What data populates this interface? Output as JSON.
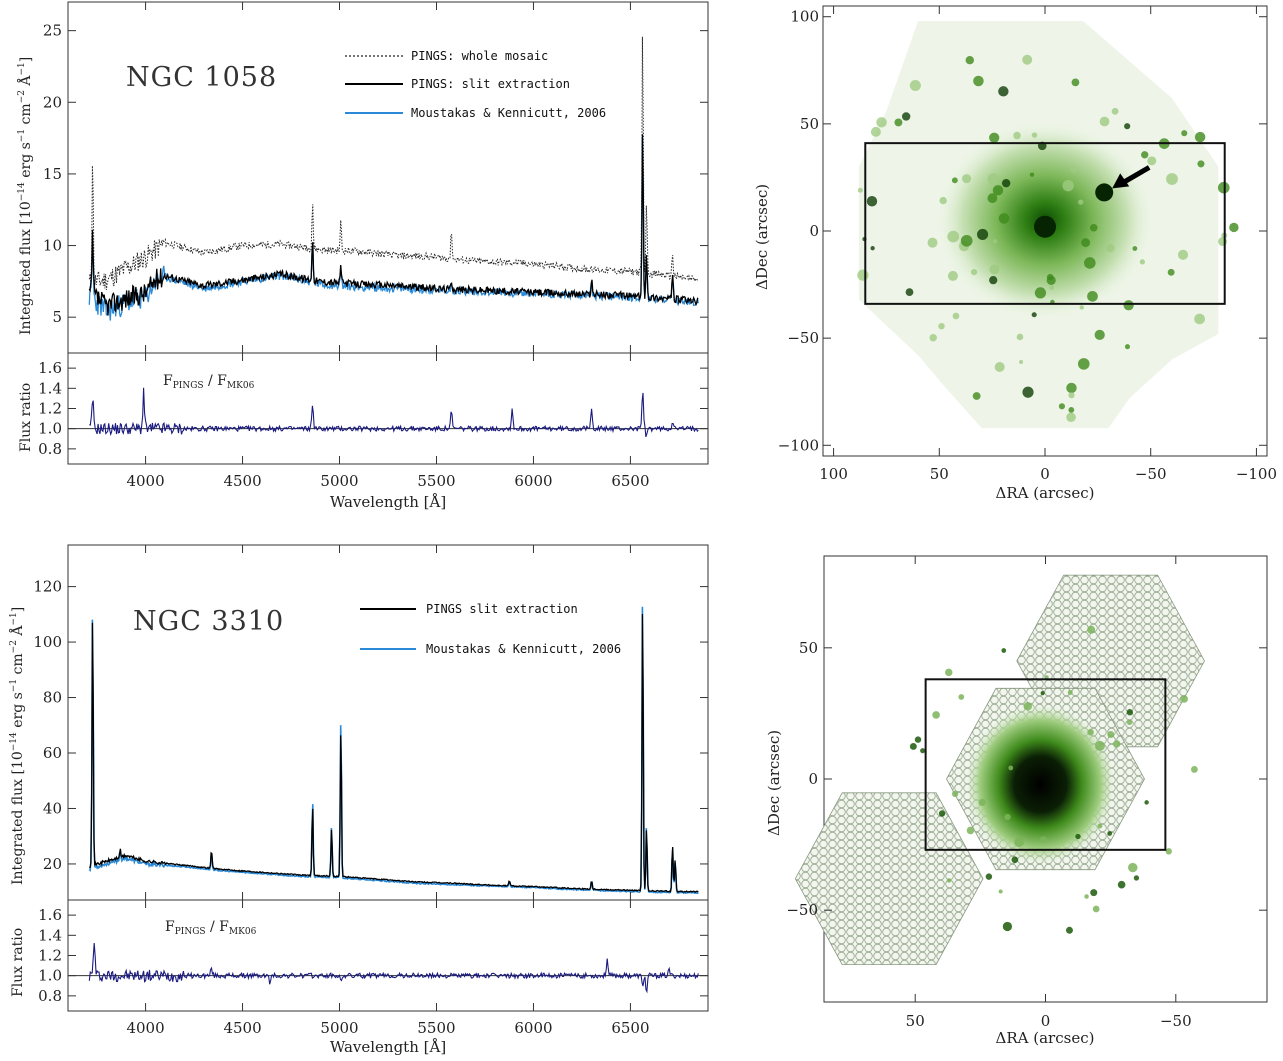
{
  "chart_data": [
    {
      "id": "ngc1058-spectrum",
      "type": "line",
      "galaxy": "NGC 1058",
      "xlabel": "Wavelength [Å]",
      "ylabel": "Integrated flux [10⁻¹⁴ erg s⁻¹ cm⁻² Å⁻¹]",
      "xlim": [
        3600,
        6900
      ],
      "ylim": [
        2.5,
        27
      ],
      "x_ticks": [
        "4000",
        "4500",
        "5000",
        "5500",
        "6000",
        "6500"
      ],
      "y_ticks": [
        "5",
        "10",
        "15",
        "20",
        "25"
      ],
      "legend": [
        "PINGS: whole mosaic",
        "PINGS: slit extraction",
        "Moustakas & Kennicutt, 2006"
      ],
      "continuum": {
        "slit": [
          [
            3700,
            6.8
          ],
          [
            3800,
            5.8
          ],
          [
            3900,
            6.3
          ],
          [
            4000,
            6.7
          ],
          [
            4050,
            7.6
          ],
          [
            4100,
            7.9
          ],
          [
            4300,
            7.2
          ],
          [
            4500,
            7.6
          ],
          [
            4700,
            8.0
          ],
          [
            4900,
            7.5
          ],
          [
            5100,
            7.3
          ],
          [
            5300,
            7.2
          ],
          [
            5500,
            7.0
          ],
          [
            5700,
            6.9
          ],
          [
            5900,
            6.8
          ],
          [
            6100,
            6.7
          ],
          [
            6300,
            6.6
          ],
          [
            6500,
            6.5
          ],
          [
            6700,
            6.3
          ],
          [
            6850,
            6.1
          ]
        ],
        "mosaic": [
          [
            3700,
            7.4
          ],
          [
            3800,
            7.6
          ],
          [
            3900,
            8.4
          ],
          [
            4000,
            9.2
          ],
          [
            4100,
            10.2
          ],
          [
            4300,
            9.5
          ],
          [
            4500,
            10.0
          ],
          [
            4700,
            10.1
          ],
          [
            4900,
            9.7
          ],
          [
            5100,
            9.6
          ],
          [
            5300,
            9.3
          ],
          [
            5500,
            9.2
          ],
          [
            5700,
            8.9
          ],
          [
            5900,
            8.8
          ],
          [
            6100,
            8.6
          ],
          [
            6300,
            8.3
          ],
          [
            6500,
            8.2
          ],
          [
            6700,
            7.9
          ],
          [
            6850,
            7.6
          ]
        ],
        "mk06": [
          [
            3700,
            6.6
          ],
          [
            3800,
            5.4
          ],
          [
            3900,
            6.0
          ],
          [
            4000,
            6.4
          ],
          [
            4050,
            7.5
          ],
          [
            4100,
            7.8
          ],
          [
            4300,
            7.0
          ],
          [
            4500,
            7.5
          ],
          [
            4700,
            7.9
          ],
          [
            4900,
            7.3
          ],
          [
            5100,
            7.1
          ],
          [
            5300,
            7.0
          ],
          [
            5500,
            6.9
          ],
          [
            5700,
            6.8
          ],
          [
            5900,
            6.7
          ],
          [
            6100,
            6.6
          ],
          [
            6300,
            6.5
          ],
          [
            6500,
            6.4
          ],
          [
            6700,
            6.2
          ],
          [
            6850,
            6.0
          ]
        ]
      },
      "lines_slit": [
        [
          3727,
          10.8
        ],
        [
          4861,
          10.5
        ],
        [
          5007,
          8.6
        ],
        [
          5577,
          7.6
        ],
        [
          6300,
          7.7
        ],
        [
          6563,
          18.3
        ],
        [
          6583,
          9.5
        ],
        [
          6717,
          8.2
        ]
      ],
      "lines_mosaic": [
        [
          3727,
          16.4
        ],
        [
          4861,
          13.1
        ],
        [
          5007,
          11.7
        ],
        [
          5577,
          11.1
        ],
        [
          6300,
          8.6
        ],
        [
          6563,
          25.3
        ],
        [
          6583,
          13.2
        ],
        [
          6717,
          9.5
        ]
      ],
      "ratio": {
        "label": "FPINGS / FMK06",
        "ylabel": "Flux ratio",
        "ylim": [
          0.65,
          1.75
        ],
        "y_ticks": [
          "0.8",
          "1.0",
          "1.2",
          "1.4",
          "1.6"
        ],
        "spikes": [
          [
            3727,
            1.3
          ],
          [
            3990,
            1.38
          ],
          [
            4861,
            1.25
          ],
          [
            5577,
            1.17
          ],
          [
            5890,
            1.2
          ],
          [
            6300,
            1.22
          ],
          [
            6563,
            1.38
          ],
          [
            6583,
            0.92
          ],
          [
            6717,
            1.08
          ]
        ]
      }
    },
    {
      "id": "ngc1058-map",
      "type": "heatmap",
      "xlabel": "ΔRA (arcsec)",
      "ylabel": "ΔDec (arcsec)",
      "xlim": [
        105,
        -105
      ],
      "ylim": [
        -105,
        105
      ],
      "x_ticks": [
        "100",
        "50",
        "0",
        "−50",
        "−100"
      ],
      "y_ticks": [
        "100",
        "50",
        "0",
        "−50",
        "−100"
      ],
      "slit_box": {
        "ra": [
          85,
          -85
        ],
        "dec": [
          -34,
          41
        ]
      },
      "arrow_target": {
        "ra": -28,
        "dec": 18
      }
    },
    {
      "id": "ngc3310-spectrum",
      "type": "line",
      "galaxy": "NGC 3310",
      "xlabel": "Wavelength [Å]",
      "ylabel": "Integrated flux [10⁻¹⁴ erg s⁻¹ cm⁻² Å⁻¹]",
      "xlim": [
        3600,
        6900
      ],
      "ylim": [
        7,
        135
      ],
      "x_ticks": [
        "4000",
        "4500",
        "5000",
        "5500",
        "6000",
        "6500"
      ],
      "y_ticks": [
        "20",
        "40",
        "60",
        "80",
        "100",
        "120"
      ],
      "legend": [
        "PINGS slit extraction",
        "Moustakas & Kennicutt, 2006"
      ],
      "continuum": {
        "slit": [
          [
            3700,
            19
          ],
          [
            3800,
            21
          ],
          [
            3900,
            23
          ],
          [
            4000,
            21
          ],
          [
            4200,
            19.5
          ],
          [
            4400,
            18
          ],
          [
            4600,
            17
          ],
          [
            4800,
            16
          ],
          [
            5000,
            15.5
          ],
          [
            5200,
            14.5
          ],
          [
            5400,
            13.5
          ],
          [
            5600,
            13
          ],
          [
            5800,
            12.3
          ],
          [
            6000,
            11.8
          ],
          [
            6200,
            11.2
          ],
          [
            6400,
            10.7
          ],
          [
            6600,
            10.3
          ],
          [
            6800,
            10
          ]
        ],
        "mk06": [
          [
            3700,
            18
          ],
          [
            3800,
            20
          ],
          [
            3900,
            22
          ],
          [
            4000,
            20
          ],
          [
            4200,
            19
          ],
          [
            4400,
            17.5
          ],
          [
            4600,
            16.5
          ],
          [
            4800,
            15.5
          ],
          [
            5000,
            15
          ],
          [
            5200,
            14
          ],
          [
            5400,
            13
          ],
          [
            5600,
            12.5
          ],
          [
            5800,
            12
          ],
          [
            6000,
            11.5
          ],
          [
            6200,
            10.8
          ],
          [
            6400,
            10.3
          ],
          [
            6600,
            9.9
          ],
          [
            6800,
            9.6
          ]
        ]
      },
      "lines_slit": [
        [
          3727,
          112
        ],
        [
          3869,
          25
        ],
        [
          4101,
          20
        ],
        [
          4340,
          25
        ],
        [
          4861,
          41
        ],
        [
          4959,
          33
        ],
        [
          5007,
          69
        ],
        [
          5876,
          14
        ],
        [
          6300,
          14
        ],
        [
          6563,
          115
        ],
        [
          6583,
          33
        ],
        [
          6717,
          27
        ],
        [
          6731,
          22
        ]
      ],
      "lines_mk06": [
        [
          3727,
          112
        ],
        [
          3869,
          25
        ],
        [
          4101,
          20
        ],
        [
          4340,
          24
        ],
        [
          4861,
          43
        ],
        [
          4959,
          34
        ],
        [
          5007,
          73
        ],
        [
          5876,
          14
        ],
        [
          6300,
          14
        ],
        [
          6563,
          118
        ],
        [
          6583,
          34
        ],
        [
          6717,
          26
        ],
        [
          6731,
          21
        ]
      ],
      "ratio": {
        "label": "FPINGS / FMK06",
        "ylabel": "Flux ratio",
        "ylim": [
          0.65,
          1.75
        ],
        "y_ticks": [
          "0.8",
          "1.0",
          "1.2",
          "1.4",
          "1.6"
        ],
        "spikes": [
          [
            3735,
            1.36
          ],
          [
            4340,
            1.08
          ],
          [
            4640,
            0.93
          ],
          [
            5007,
            0.93
          ],
          [
            6380,
            1.18
          ],
          [
            6563,
            0.9
          ],
          [
            6583,
            0.83
          ],
          [
            6700,
            1.06
          ]
        ]
      }
    },
    {
      "id": "ngc3310-map",
      "type": "heatmap",
      "xlabel": "ΔRA (arcsec)",
      "ylabel": "ΔDec (arcsec)",
      "xlim": [
        85,
        -85
      ],
      "ylim": [
        -85,
        85
      ],
      "x_ticks": [
        "50",
        "0",
        "−50"
      ],
      "y_ticks": [
        "50",
        "0",
        "−50"
      ],
      "slit_box": {
        "ra": [
          46,
          -46
        ],
        "dec": [
          -27,
          38
        ]
      }
    }
  ]
}
